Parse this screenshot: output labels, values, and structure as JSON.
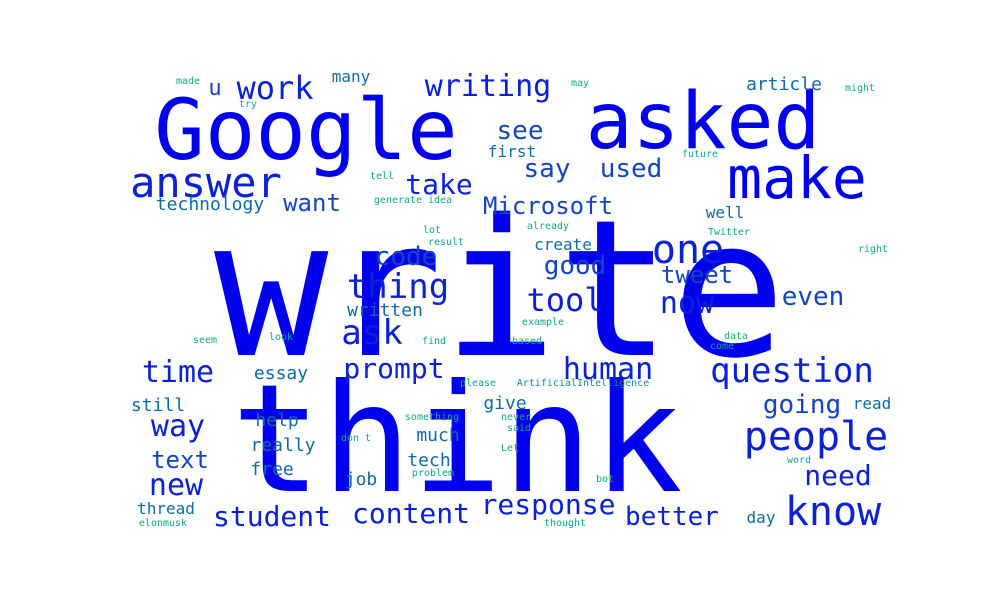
{
  "words": [
    "write",
    "think",
    "Google",
    "asked",
    "make",
    "answer",
    "people",
    "know",
    "one",
    "question",
    "human",
    "ask",
    "thing",
    "tool",
    "prompt",
    "writing",
    "student",
    "content",
    "response",
    "time",
    "way",
    "better",
    "new",
    "work",
    "take",
    "see",
    "say",
    "used",
    "Microsoft",
    "code",
    "good",
    "now",
    "tweet",
    "even",
    "going",
    "need",
    "text",
    "want",
    "technology",
    "written",
    "essay",
    "still",
    "help",
    "really",
    "free",
    "job",
    "much",
    "tech",
    "give",
    "create",
    "article",
    "first",
    "thread",
    "day",
    "well",
    "read",
    "many",
    "u",
    "future",
    "made",
    "try",
    "may",
    "might",
    "tell",
    "generate",
    "idea",
    "lot",
    "result",
    "already",
    "Twitter",
    "right",
    "seem",
    "look",
    "find",
    "based",
    "example",
    "data",
    "come",
    "please",
    "ArtificialIntelligence",
    "something",
    "never",
    "said",
    "don t",
    "Let",
    "problem",
    "bot",
    "word",
    "elonmusk",
    "thought"
  ],
  "colors": {
    "c1": "#0000ee",
    "c2": "#0a21d4",
    "c3": "#1345c0",
    "c4": "#0f6aa6",
    "c5": "#0d8f96",
    "c6": "#11a884"
  }
}
